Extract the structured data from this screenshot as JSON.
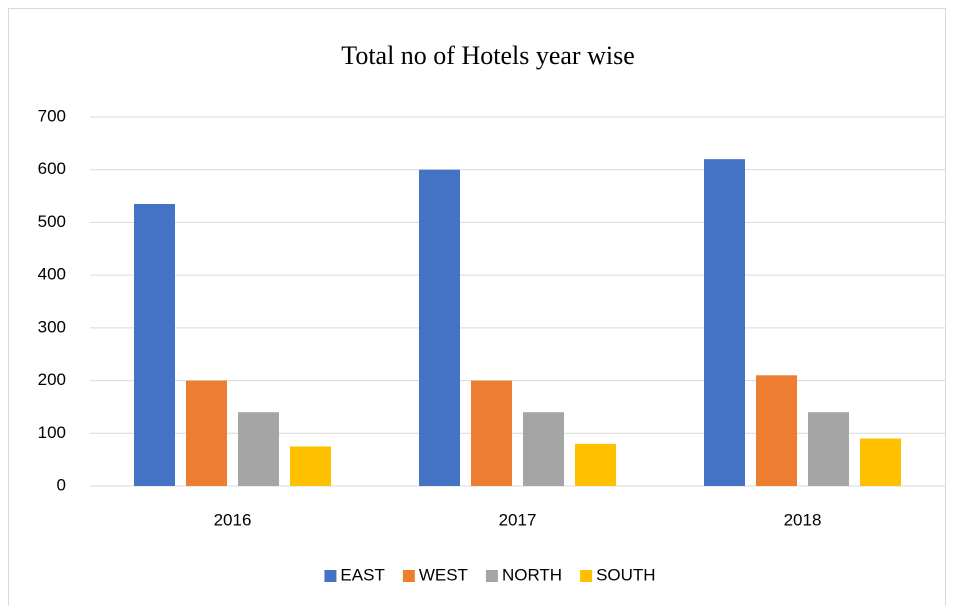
{
  "chart_data": {
    "type": "bar",
    "title": "Total no of Hotels year wise",
    "categories": [
      "2016",
      "2017",
      "2018"
    ],
    "series": [
      {
        "name": "EAST",
        "color": "#4472c4",
        "values": [
          535,
          600,
          620
        ]
      },
      {
        "name": "WEST",
        "color": "#ed7d31",
        "values": [
          200,
          200,
          210
        ]
      },
      {
        "name": "NORTH",
        "color": "#a5a5a5",
        "values": [
          140,
          140,
          140
        ]
      },
      {
        "name": "SOUTH",
        "color": "#ffc000",
        "values": [
          75,
          80,
          90
        ]
      }
    ],
    "ylim": [
      0,
      700
    ],
    "yticks": [
      0,
      100,
      200,
      300,
      400,
      500,
      600,
      700
    ],
    "grid": true,
    "legend": "bottom"
  }
}
